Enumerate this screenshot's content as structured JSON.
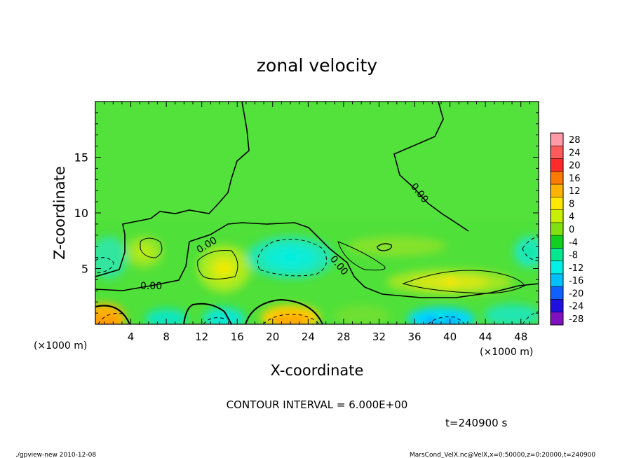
{
  "chart_data": {
    "type": "heatmap",
    "title": "zonal velocity",
    "xlabel": "X-coordinate",
    "ylabel": "Z-coordinate",
    "x_unit": "(×1000 m)",
    "y_unit": "(×1000 m)",
    "xlim": [
      0,
      50
    ],
    "ylim": [
      0,
      20
    ],
    "x_ticks": [
      4,
      8,
      12,
      16,
      20,
      24,
      28,
      32,
      36,
      40,
      44,
      48
    ],
    "y_ticks": [
      5,
      10,
      15
    ],
    "colorbar": {
      "levels": [
        28,
        24,
        20,
        16,
        12,
        8,
        4,
        0,
        -4,
        -8,
        -12,
        -16,
        -20,
        -24,
        -28
      ],
      "colors": [
        "#ff9aa6",
        "#ff5a5a",
        "#ff2a2a",
        "#ff7a00",
        "#ffb300",
        "#ffe800",
        "#c8f000",
        "#80e010",
        "#10d020",
        "#00e890",
        "#00f0e8",
        "#00c0ff",
        "#1060ff",
        "#2010e0",
        "#8010c0"
      ]
    },
    "contour_label": "0.00",
    "contour_interval_text": "CONTOUR INTERVAL = 6.000E+00",
    "time_text": "t=240900  s",
    "features": [
      {
        "x": 14.5,
        "z": 5.0,
        "value": 9,
        "kind": "max"
      },
      {
        "x": 22,
        "z": 6.0,
        "value": -9,
        "kind": "min"
      },
      {
        "x": 5.5,
        "z": 6.5,
        "value": 5,
        "kind": "max"
      },
      {
        "x": 40,
        "z": 3.8,
        "value": 9,
        "kind": "max"
      },
      {
        "x": 1,
        "z": 0.5,
        "value": 14,
        "kind": "max"
      },
      {
        "x": 22,
        "z": 0.6,
        "value": 14,
        "kind": "max"
      },
      {
        "x": 39,
        "z": 0.5,
        "value": -12,
        "kind": "min"
      },
      {
        "x": 49,
        "z": 6.5,
        "value": -6,
        "kind": "min"
      }
    ]
  },
  "footer": {
    "left": "./gpview-new  2010-12-08",
    "right": "MarsCond_VelX.nc@VelX,x=0:50000,z=0:20000,t=240900"
  }
}
